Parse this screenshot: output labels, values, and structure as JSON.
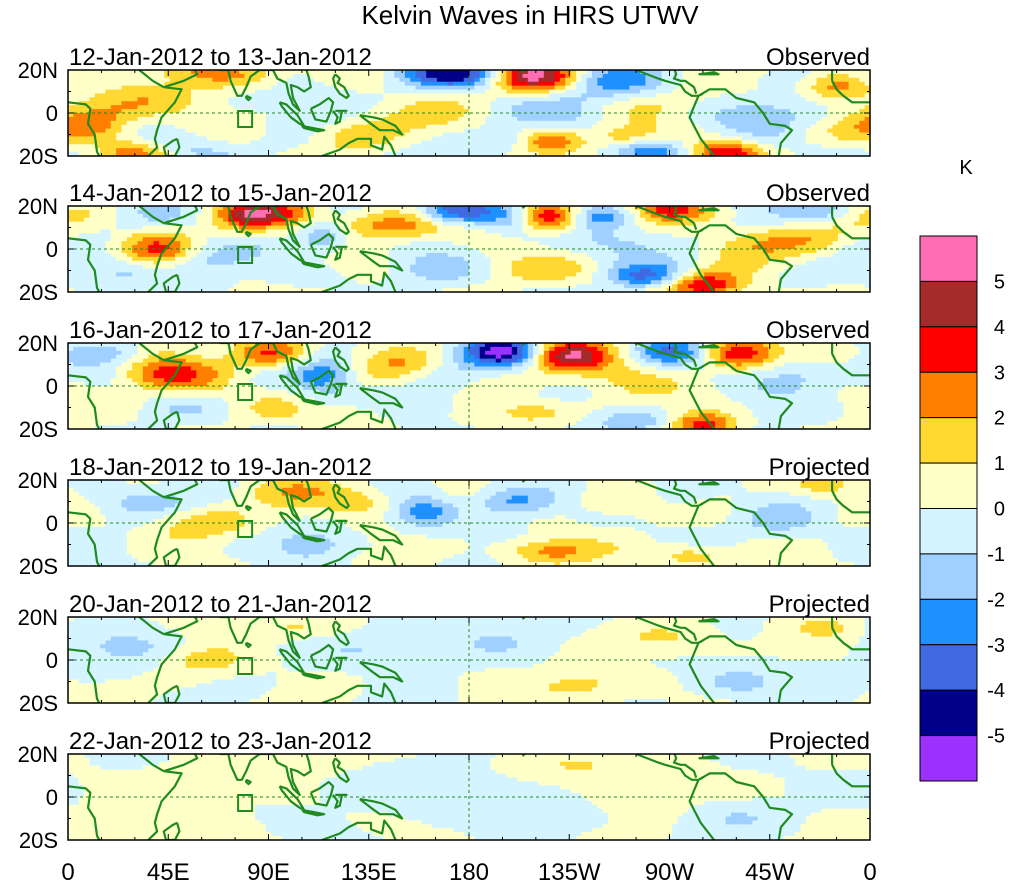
{
  "chart_data": {
    "type": "heatmap",
    "title": "Kelvin Waves in HIRS UTWV",
    "units": "K",
    "panels": [
      {
        "period": "12-Jan-2012 to 13-Jan-2012",
        "kind": "Observed",
        "amplitude": 1.0
      },
      {
        "period": "14-Jan-2012 to 15-Jan-2012",
        "kind": "Observed",
        "amplitude": 1.0
      },
      {
        "period": "16-Jan-2012 to 17-Jan-2012",
        "kind": "Observed",
        "amplitude": 0.95
      },
      {
        "period": "18-Jan-2012 to 19-Jan-2012",
        "kind": "Projected",
        "amplitude": 0.65
      },
      {
        "period": "20-Jan-2012 to 21-Jan-2012",
        "kind": "Projected",
        "amplitude": 0.35
      },
      {
        "period": "22-Jan-2012 to 23-Jan-2012",
        "kind": "Projected",
        "amplitude": 0.2
      }
    ],
    "lat_ticks": [
      "20N",
      "0",
      "20S"
    ],
    "lon_ticks": [
      "0",
      "45E",
      "90E",
      "135E",
      "180",
      "135W",
      "90W",
      "45W",
      "0"
    ],
    "lat_range": [
      -20,
      20
    ],
    "lon_range": [
      0,
      360
    ],
    "levels": [
      5,
      4,
      3,
      2,
      1,
      0,
      -1,
      -2,
      -3,
      -4,
      -5
    ],
    "level_labels": [
      "5",
      "4",
      "3",
      "2",
      "1",
      "0",
      "-1",
      "-2",
      "-3",
      "-4",
      "-5"
    ],
    "colors": [
      "#ff6eb4",
      "#a52a2a",
      "#ff0000",
      "#ff7f00",
      "#ffd832",
      "#ffffc8",
      "#d4f5ff",
      "#a0d0ff",
      "#1e90ff",
      "#4169e1",
      "#00008b",
      "#9b30ff"
    ],
    "features": [
      [
        {
          "lon": 210,
          "lat": 17,
          "amp": 4.5,
          "sl": 14,
          "sa": 5
        },
        {
          "lon": 180,
          "lat": 18,
          "amp": -3.2,
          "sl": 12,
          "sa": 4
        },
        {
          "lon": 160,
          "lat": 18,
          "amp": -2,
          "sl": 12,
          "sa": 4
        },
        {
          "lon": 245,
          "lat": 14,
          "amp": -1.8,
          "sl": 20,
          "sa": 6
        },
        {
          "lon": 215,
          "lat": -13,
          "amp": 3,
          "sl": 12,
          "sa": 4
        },
        {
          "lon": 295,
          "lat": -18,
          "amp": 3.5,
          "sl": 10,
          "sa": 4
        },
        {
          "lon": 260,
          "lat": -17,
          "amp": -2.5,
          "sl": 12,
          "sa": 4
        },
        {
          "lon": 200,
          "lat": -13,
          "amp": -1.8,
          "sl": 10,
          "sa": 4
        },
        {
          "lon": 12,
          "lat": -5,
          "amp": 2.8,
          "sl": 14,
          "sa": 6
        },
        {
          "lon": 40,
          "lat": 5,
          "amp": 1.8,
          "sl": 22,
          "sa": 6
        },
        {
          "lon": 80,
          "lat": 17,
          "amp": 2.4,
          "sl": 14,
          "sa": 5
        },
        {
          "lon": 60,
          "lat": 20,
          "amp": 1.5,
          "sl": 12,
          "sa": 4
        },
        {
          "lon": 100,
          "lat": 5,
          "amp": -1.2,
          "sl": 25,
          "sa": 8
        },
        {
          "lon": 125,
          "lat": -10,
          "amp": 1.5,
          "sl": 14,
          "sa": 5
        },
        {
          "lon": 250,
          "lat": -12,
          "amp": 2,
          "sl": 10,
          "sa": 4
        },
        {
          "lon": 345,
          "lat": 12,
          "amp": 2.5,
          "sl": 10,
          "sa": 5
        },
        {
          "lon": 320,
          "lat": 0,
          "amp": -1.5,
          "sl": 18,
          "sa": 6
        },
        {
          "lon": 270,
          "lat": 5,
          "amp": 1.2,
          "sl": 15,
          "sa": 5
        },
        {
          "lon": 140,
          "lat": 0,
          "amp": 1.3,
          "sl": 18,
          "sa": 6
        },
        {
          "lon": 55,
          "lat": -15,
          "amp": -1.2,
          "sl": 12,
          "sa": 4
        },
        {
          "lon": 30,
          "lat": -18,
          "amp": 2,
          "sl": 10,
          "sa": 4
        },
        {
          "lon": 230,
          "lat": 2,
          "amp": -1,
          "sl": 15,
          "sa": 6
        }
      ],
      [
        {
          "lon": 175,
          "lat": 18,
          "amp": -4.5,
          "sl": 12,
          "sa": 4
        },
        {
          "lon": 215,
          "lat": 15,
          "amp": 4.5,
          "sl": 10,
          "sa": 5
        },
        {
          "lon": 200,
          "lat": 14,
          "amp": -1.8,
          "sl": 10,
          "sa": 5
        },
        {
          "lon": 240,
          "lat": 15,
          "amp": -2.5,
          "sl": 10,
          "sa": 4
        },
        {
          "lon": 270,
          "lat": 18,
          "amp": 3,
          "sl": 12,
          "sa": 4
        },
        {
          "lon": 285,
          "lat": -17,
          "amp": 4,
          "sl": 12,
          "sa": 4
        },
        {
          "lon": 260,
          "lat": -13,
          "amp": -2.5,
          "sl": 12,
          "sa": 4
        },
        {
          "lon": 95,
          "lat": 17,
          "amp": 3,
          "sl": 14,
          "sa": 4
        },
        {
          "lon": 80,
          "lat": 15,
          "amp": 2,
          "sl": 10,
          "sa": 5
        },
        {
          "lon": 115,
          "lat": 5,
          "amp": -2.5,
          "sl": 8,
          "sa": 5
        },
        {
          "lon": 40,
          "lat": 0,
          "amp": 2.6,
          "sl": 12,
          "sa": 6
        },
        {
          "lon": 25,
          "lat": -10,
          "amp": -1.8,
          "sl": 14,
          "sa": 5
        },
        {
          "lon": 130,
          "lat": 12,
          "amp": 1.8,
          "sl": 12,
          "sa": 5
        },
        {
          "lon": 150,
          "lat": 10,
          "amp": 2,
          "sl": 12,
          "sa": 5
        },
        {
          "lon": 160,
          "lat": -10,
          "amp": -1.5,
          "sl": 15,
          "sa": 5
        },
        {
          "lon": 195,
          "lat": -10,
          "amp": 1.2,
          "sl": 15,
          "sa": 5
        },
        {
          "lon": 330,
          "lat": 5,
          "amp": 1.5,
          "sl": 18,
          "sa": 6
        },
        {
          "lon": 340,
          "lat": 18,
          "amp": -2,
          "sl": 10,
          "sa": 4
        },
        {
          "lon": 60,
          "lat": -5,
          "amp": -1.2,
          "sl": 12,
          "sa": 6
        },
        {
          "lon": 250,
          "lat": 3,
          "amp": -1.4,
          "sl": 15,
          "sa": 5
        },
        {
          "lon": 300,
          "lat": 2,
          "amp": 1.2,
          "sl": 14,
          "sa": 5
        }
      ],
      [
        {
          "lon": 195,
          "lat": 16,
          "amp": -4.8,
          "sl": 12,
          "sa": 5
        },
        {
          "lon": 225,
          "lat": 14,
          "amp": 4.2,
          "sl": 12,
          "sa": 5
        },
        {
          "lon": 210,
          "lat": -12,
          "amp": 2,
          "sl": 14,
          "sa": 4
        },
        {
          "lon": 285,
          "lat": -18,
          "amp": 3.5,
          "sl": 10,
          "sa": 4
        },
        {
          "lon": 300,
          "lat": 15,
          "amp": 3,
          "sl": 10,
          "sa": 5
        },
        {
          "lon": 270,
          "lat": 16,
          "amp": -2.2,
          "sl": 10,
          "sa": 4
        },
        {
          "lon": 90,
          "lat": 15,
          "amp": 3.5,
          "sl": 12,
          "sa": 5
        },
        {
          "lon": 115,
          "lat": 5,
          "amp": -2.8,
          "sl": 10,
          "sa": 6
        },
        {
          "lon": 40,
          "lat": 5,
          "amp": 2.5,
          "sl": 12,
          "sa": 6
        },
        {
          "lon": 20,
          "lat": 15,
          "amp": -1.8,
          "sl": 12,
          "sa": 4
        },
        {
          "lon": 60,
          "lat": 5,
          "amp": 1.5,
          "sl": 12,
          "sa": 6
        },
        {
          "lon": 150,
          "lat": 10,
          "amp": 1.6,
          "sl": 12,
          "sa": 5
        },
        {
          "lon": 255,
          "lat": -16,
          "amp": -2,
          "sl": 12,
          "sa": 4
        },
        {
          "lon": 330,
          "lat": 5,
          "amp": -1.5,
          "sl": 15,
          "sa": 6
        },
        {
          "lon": 345,
          "lat": 15,
          "amp": 1.8,
          "sl": 10,
          "sa": 4
        },
        {
          "lon": 130,
          "lat": -12,
          "amp": 1.5,
          "sl": 12,
          "sa": 5
        },
        {
          "lon": 170,
          "lat": -10,
          "amp": -1.2,
          "sl": 14,
          "sa": 5
        },
        {
          "lon": 250,
          "lat": 3,
          "amp": 1.4,
          "sl": 15,
          "sa": 6
        }
      ],
      [
        {
          "lon": 200,
          "lat": 10,
          "amp": -2.6,
          "sl": 12,
          "sa": 5
        },
        {
          "lon": 215,
          "lat": -13,
          "amp": 2.5,
          "sl": 14,
          "sa": 4
        },
        {
          "lon": 160,
          "lat": 5,
          "amp": -2.4,
          "sl": 10,
          "sa": 5
        },
        {
          "lon": 130,
          "lat": 10,
          "amp": 1.8,
          "sl": 12,
          "sa": 5
        },
        {
          "lon": 100,
          "lat": 15,
          "amp": 1.5,
          "sl": 15,
          "sa": 5
        },
        {
          "lon": 60,
          "lat": 0,
          "amp": 1.8,
          "sl": 15,
          "sa": 5
        },
        {
          "lon": 30,
          "lat": 10,
          "amp": -1.5,
          "sl": 15,
          "sa": 5
        },
        {
          "lon": 250,
          "lat": 10,
          "amp": 1.5,
          "sl": 15,
          "sa": 5
        },
        {
          "lon": 280,
          "lat": -15,
          "amp": 2,
          "sl": 12,
          "sa": 4
        },
        {
          "lon": 340,
          "lat": 18,
          "amp": 2,
          "sl": 10,
          "sa": 4
        },
        {
          "lon": 320,
          "lat": 0,
          "amp": -1.2,
          "sl": 15,
          "sa": 6
        },
        {
          "lon": 270,
          "lat": 12,
          "amp": -1.2,
          "sl": 12,
          "sa": 5
        },
        {
          "lon": 110,
          "lat": -10,
          "amp": -1.4,
          "sl": 12,
          "sa": 5
        }
      ],
      [
        {
          "lon": 60,
          "lat": 0,
          "amp": 1.6,
          "sl": 14,
          "sa": 5
        },
        {
          "lon": 30,
          "lat": 5,
          "amp": -1.2,
          "sl": 18,
          "sa": 6
        },
        {
          "lon": 140,
          "lat": 5,
          "amp": -1,
          "sl": 20,
          "sa": 6
        },
        {
          "lon": 230,
          "lat": -12,
          "amp": 1.6,
          "sl": 15,
          "sa": 5
        },
        {
          "lon": 300,
          "lat": -10,
          "amp": -1.4,
          "sl": 14,
          "sa": 5
        },
        {
          "lon": 270,
          "lat": 10,
          "amp": 1.2,
          "sl": 15,
          "sa": 5
        },
        {
          "lon": 100,
          "lat": 15,
          "amp": 1.2,
          "sl": 15,
          "sa": 4
        },
        {
          "lon": 190,
          "lat": 10,
          "amp": -0.8,
          "sl": 20,
          "sa": 6
        },
        {
          "lon": 340,
          "lat": 15,
          "amp": 1.2,
          "sl": 10,
          "sa": 4
        }
      ],
      [
        {
          "lon": 230,
          "lat": 15,
          "amp": 1.2,
          "sl": 15,
          "sa": 4
        },
        {
          "lon": 60,
          "lat": 5,
          "amp": 1,
          "sl": 15,
          "sa": 5
        },
        {
          "lon": 150,
          "lat": 5,
          "amp": -0.8,
          "sl": 25,
          "sa": 6
        },
        {
          "lon": 300,
          "lat": -10,
          "amp": -1,
          "sl": 15,
          "sa": 5
        },
        {
          "lon": 30,
          "lat": -15,
          "amp": 0.9,
          "sl": 15,
          "sa": 4
        },
        {
          "lon": 100,
          "lat": 15,
          "amp": 1.0,
          "sl": 15,
          "sa": 4
        },
        {
          "lon": 200,
          "lat": -5,
          "amp": -0.7,
          "sl": 20,
          "sa": 6
        },
        {
          "lon": 260,
          "lat": 0,
          "amp": 0.8,
          "sl": 15,
          "sa": 6
        }
      ]
    ]
  }
}
